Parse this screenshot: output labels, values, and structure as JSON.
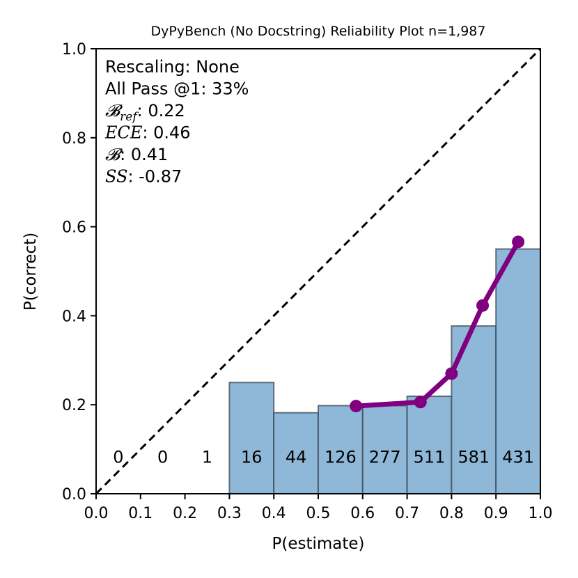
{
  "chart_data": {
    "type": "bar",
    "title": "DyPyBench (No Docstring) Reliability Plot n=1,987",
    "xlabel": "P(estimate)",
    "ylabel": "P(correct)",
    "xlim": [
      0.0,
      1.0
    ],
    "ylim": [
      0.0,
      1.0
    ],
    "xticks": [
      "0.0",
      "0.1",
      "0.2",
      "0.3",
      "0.4",
      "0.5",
      "0.6",
      "0.7",
      "0.8",
      "0.9",
      "1.0"
    ],
    "yticks": [
      "0.0",
      "0.2",
      "0.4",
      "0.6",
      "0.8",
      "1.0"
    ],
    "bins": [
      {
        "lo": 0.0,
        "hi": 0.1,
        "count": "0",
        "accuracy": 0.0
      },
      {
        "lo": 0.1,
        "hi": 0.2,
        "count": "0",
        "accuracy": 0.0
      },
      {
        "lo": 0.2,
        "hi": 0.3,
        "count": "1",
        "accuracy": 0.0
      },
      {
        "lo": 0.3,
        "hi": 0.4,
        "count": "16",
        "accuracy": 0.25
      },
      {
        "lo": 0.4,
        "hi": 0.5,
        "count": "44",
        "accuracy": 0.182
      },
      {
        "lo": 0.5,
        "hi": 0.6,
        "count": "126",
        "accuracy": 0.198
      },
      {
        "lo": 0.6,
        "hi": 0.7,
        "count": "277",
        "accuracy": 0.198
      },
      {
        "lo": 0.7,
        "hi": 0.8,
        "count": "511",
        "accuracy": 0.219
      },
      {
        "lo": 0.8,
        "hi": 0.9,
        "count": "581",
        "accuracy": 0.377
      },
      {
        "lo": 0.9,
        "hi": 1.0,
        "count": "431",
        "accuracy": 0.55
      }
    ],
    "calibration_curve": {
      "x": [
        0.585,
        0.73,
        0.8,
        0.87,
        0.95
      ],
      "y": [
        0.197,
        0.206,
        0.27,
        0.423,
        0.566
      ]
    },
    "stats": [
      {
        "key": "",
        "text": "Rescaling: None"
      },
      {
        "key": "",
        "text": "All Pass @1: 33%"
      },
      {
        "key": "𝓑",
        "sub": "ref",
        "text": ": 0.22"
      },
      {
        "key": "ECE",
        "text": ": 0.46"
      },
      {
        "key": "𝓑",
        "text": ": 0.41"
      },
      {
        "key": "SS",
        "text": ": -0.87"
      }
    ],
    "colors": {
      "bar": "#8fb8d8",
      "curve": "#800080",
      "diagonal": "#000000"
    }
  }
}
